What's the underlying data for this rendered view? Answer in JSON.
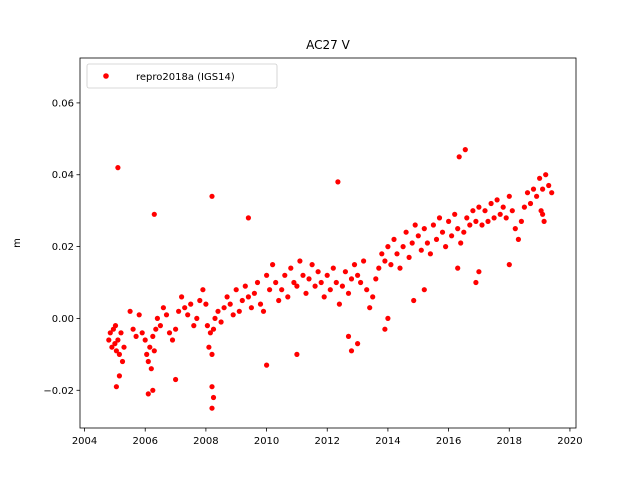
{
  "chart_data": {
    "type": "scatter",
    "title": "AC27 V",
    "xlabel": "",
    "ylabel": "m",
    "xlim": [
      2003.85,
      2020.2
    ],
    "ylim": [
      -0.0305,
      0.0725
    ],
    "xticks": [
      2004,
      2006,
      2008,
      2010,
      2012,
      2014,
      2016,
      2018,
      2020
    ],
    "xtick_labels": [
      "2004",
      "2006",
      "2008",
      "2010",
      "2012",
      "2014",
      "2016",
      "2018",
      "2020"
    ],
    "yticks": [
      -0.02,
      0.0,
      0.02,
      0.04,
      0.06
    ],
    "ytick_labels": [
      "−0.02",
      "0.00",
      "0.02",
      "0.04",
      "0.06"
    ],
    "grid": false,
    "legend_position": "top-left",
    "series": [
      {
        "name": "repro2018a (IGS14)",
        "color": "#ff0000",
        "marker": "circle",
        "x": [
          2004.8,
          2004.85,
          2004.9,
          2004.95,
          2005.0,
          2005.02,
          2005.05,
          2005.1,
          2005.15,
          2005.2,
          2005.25,
          2005.3,
          2005.5,
          2005.6,
          2005.7,
          2005.8,
          2005.9,
          2006.0,
          2006.05,
          2006.1,
          2006.15,
          2006.2,
          2006.25,
          2006.3,
          2006.35,
          2006.4,
          2006.5,
          2006.6,
          2006.7,
          2006.8,
          2006.9,
          2007.0,
          2007.1,
          2007.2,
          2007.3,
          2007.4,
          2007.5,
          2007.6,
          2007.7,
          2007.8,
          2007.9,
          2008.0,
          2008.05,
          2008.1,
          2008.15,
          2008.2,
          2008.25,
          2008.3,
          2008.4,
          2008.5,
          2008.6,
          2008.7,
          2008.8,
          2008.9,
          2009.0,
          2009.1,
          2009.2,
          2009.3,
          2009.4,
          2009.5,
          2009.6,
          2009.7,
          2009.8,
          2009.9,
          2010.0,
          2010.1,
          2010.2,
          2010.3,
          2010.4,
          2010.5,
          2010.6,
          2010.7,
          2010.8,
          2010.9,
          2011.0,
          2011.1,
          2011.2,
          2011.3,
          2011.4,
          2011.5,
          2011.6,
          2011.7,
          2011.8,
          2011.9,
          2012.0,
          2012.1,
          2012.2,
          2012.3,
          2012.4,
          2012.5,
          2012.6,
          2012.7,
          2012.8,
          2012.9,
          2013.0,
          2013.1,
          2013.2,
          2013.3,
          2013.4,
          2013.5,
          2013.6,
          2013.7,
          2013.8,
          2013.9,
          2014.0,
          2014.1,
          2014.2,
          2014.3,
          2014.4,
          2014.5,
          2014.6,
          2014.7,
          2014.8,
          2014.9,
          2015.0,
          2015.1,
          2015.2,
          2015.3,
          2015.4,
          2015.5,
          2015.6,
          2015.7,
          2015.8,
          2015.9,
          2016.0,
          2016.1,
          2016.2,
          2016.3,
          2016.4,
          2016.5,
          2016.6,
          2016.7,
          2016.8,
          2016.9,
          2017.0,
          2017.1,
          2017.2,
          2017.3,
          2017.4,
          2017.5,
          2017.6,
          2017.7,
          2017.8,
          2017.9,
          2018.0,
          2018.1,
          2018.2,
          2018.3,
          2018.4,
          2018.5,
          2018.6,
          2018.7,
          2018.8,
          2018.9,
          2019.0,
          2019.1,
          2019.2,
          2019.3,
          2019.4,
          2005.05,
          2005.15,
          2006.1,
          2006.25,
          2007.0,
          2008.2,
          2008.25,
          2008.2,
          2010.0,
          2011.0,
          2012.7,
          2012.8,
          2013.0,
          2013.9,
          2014.0,
          2014.85,
          2016.9,
          2017.0,
          2018.0,
          2019.05,
          2019.1,
          2019.15,
          2016.3,
          2015.2,
          2005.1,
          2006.3,
          2008.2,
          2009.4,
          2012.35,
          2016.35,
          2016.55
        ],
        "y": [
          -0.006,
          -0.004,
          -0.008,
          -0.003,
          -0.007,
          -0.002,
          -0.009,
          -0.006,
          -0.01,
          -0.004,
          -0.012,
          -0.008,
          0.002,
          -0.003,
          -0.005,
          0.001,
          -0.004,
          -0.006,
          -0.01,
          -0.012,
          -0.008,
          -0.014,
          -0.005,
          -0.009,
          -0.003,
          0.0,
          -0.002,
          0.003,
          0.001,
          -0.004,
          -0.006,
          -0.003,
          0.002,
          0.006,
          0.003,
          0.001,
          0.004,
          -0.002,
          0.0,
          0.005,
          0.008,
          0.004,
          -0.002,
          -0.008,
          -0.004,
          -0.01,
          -0.003,
          0.0,
          0.002,
          -0.001,
          0.003,
          0.006,
          0.004,
          0.001,
          0.008,
          0.002,
          0.005,
          0.009,
          0.006,
          0.003,
          0.007,
          0.01,
          0.004,
          0.002,
          0.012,
          0.008,
          0.015,
          0.01,
          0.005,
          0.008,
          0.012,
          0.006,
          0.014,
          0.01,
          0.009,
          0.016,
          0.012,
          0.007,
          0.011,
          0.015,
          0.009,
          0.013,
          0.01,
          0.006,
          0.012,
          0.008,
          0.014,
          0.01,
          0.004,
          0.009,
          0.013,
          0.007,
          0.011,
          0.015,
          0.012,
          0.01,
          0.016,
          0.008,
          0.003,
          0.006,
          0.011,
          0.014,
          0.018,
          0.016,
          0.02,
          0.015,
          0.022,
          0.018,
          0.014,
          0.02,
          0.024,
          0.017,
          0.021,
          0.026,
          0.023,
          0.019,
          0.025,
          0.021,
          0.018,
          0.026,
          0.022,
          0.028,
          0.024,
          0.02,
          0.027,
          0.023,
          0.029,
          0.025,
          0.021,
          0.024,
          0.028,
          0.026,
          0.03,
          0.027,
          0.031,
          0.026,
          0.03,
          0.027,
          0.032,
          0.028,
          0.033,
          0.029,
          0.031,
          0.028,
          0.034,
          0.03,
          0.025,
          0.022,
          0.027,
          0.031,
          0.035,
          0.032,
          0.036,
          0.034,
          0.039,
          0.036,
          0.04,
          0.037,
          0.035,
          -0.019,
          -0.016,
          -0.021,
          -0.02,
          -0.017,
          -0.025,
          -0.022,
          -0.019,
          -0.013,
          -0.01,
          -0.005,
          -0.009,
          -0.007,
          -0.003,
          0.0,
          0.005,
          0.01,
          0.013,
          0.015,
          0.03,
          0.029,
          0.027,
          0.014,
          0.008,
          0.042,
          0.029,
          0.034,
          0.028,
          0.038,
          0.045,
          0.047
        ]
      }
    ]
  }
}
